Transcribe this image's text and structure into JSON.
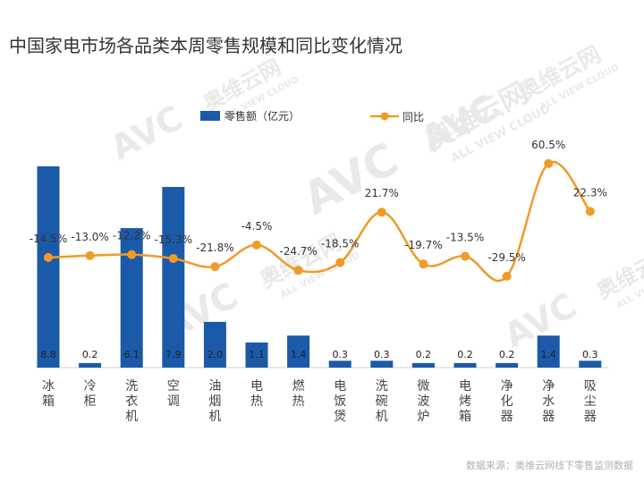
{
  "title": "中国家电市场各品类本周零售规模和同比变化情况",
  "source": "数据来源：奥维云网线下零售监测数据",
  "watermark": {
    "brand": "AVC",
    "name": "奥维云网",
    "sub": "ALL VIEW CLOUD"
  },
  "colors": {
    "bar": "#1b5aa8",
    "line": "#f19a27",
    "title": "#333333"
  },
  "chart_data": {
    "type": "bar",
    "categories": [
      "冰箱",
      "冷柜",
      "洗衣机",
      "空调",
      "油烟机",
      "电热",
      "燃热",
      "电饭煲",
      "洗碗机",
      "微波炉",
      "电烤箱",
      "净化器",
      "净水器",
      "吸尘器"
    ],
    "series": [
      {
        "name": "零售额（亿元）",
        "type": "bar",
        "values": [
          8.8,
          0.2,
          6.1,
          7.9,
          2.0,
          1.1,
          1.4,
          0.3,
          0.3,
          0.2,
          0.2,
          0.2,
          1.4,
          0.3
        ],
        "labels": [
          "8.8",
          "0.2",
          "6.1",
          "7.9",
          "2.0",
          "1.1",
          "1.4",
          "0.3",
          "0.3",
          "0.2",
          "0.2",
          "0.2",
          "1.4",
          "0.3"
        ]
      },
      {
        "name": "同比",
        "type": "line",
        "values": [
          -14.5,
          -13.0,
          -12.2,
          -15.3,
          -21.8,
          -4.5,
          -24.7,
          -18.5,
          21.7,
          -19.7,
          -13.5,
          -29.5,
          60.5,
          22.3
        ],
        "labels": [
          "-14.5%",
          "-13.0%",
          "-12.2%",
          "-15.3%",
          "-21.8%",
          "-4.5%",
          "-24.7%",
          "-18.5%",
          "21.7%",
          "-19.7%",
          "-13.5%",
          "-29.5%",
          "60.5%",
          "22.3%"
        ]
      }
    ],
    "legend_position": "top",
    "grid": false
  }
}
